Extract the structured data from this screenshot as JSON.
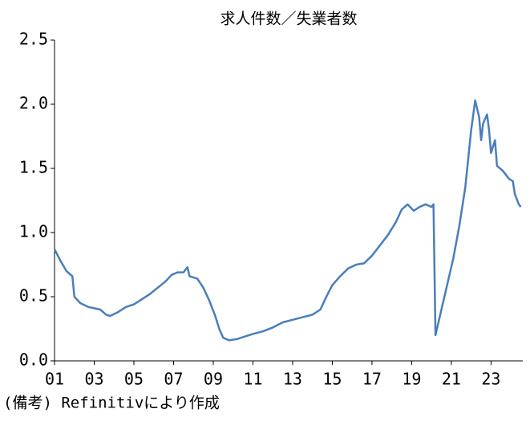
{
  "chart_data": {
    "type": "line",
    "title": "求人件数／失業者数",
    "note": "(備考) Refinitivにより作成",
    "xlim": [
      1,
      24.6
    ],
    "xticks": [
      {
        "value": 1,
        "label": "01"
      },
      {
        "value": 3,
        "label": "03"
      },
      {
        "value": 5,
        "label": "05"
      },
      {
        "value": 7,
        "label": "07"
      },
      {
        "value": 9,
        "label": "09"
      },
      11,
      13,
      15,
      17,
      19,
      21,
      23
    ],
    "ylim": [
      0,
      2.5
    ],
    "yticks": [
      {
        "value": 0,
        "label": "0.0"
      },
      0.5,
      {
        "value": 1,
        "label": "1.0"
      },
      1.5,
      {
        "value": 2,
        "label": "2.0"
      },
      2.5
    ],
    "grid": false,
    "series": [
      {
        "color": "#4a7ebb",
        "x": [
          1.0,
          1.3,
          1.6,
          1.9,
          2.0,
          2.3,
          2.7,
          3.0,
          3.3,
          3.6,
          3.8,
          4.2,
          4.6,
          5.0,
          5.4,
          5.8,
          6.2,
          6.6,
          6.9,
          7.2,
          7.5,
          7.7,
          7.8,
          8.2,
          8.5,
          8.8,
          9.1,
          9.3,
          9.5,
          9.8,
          10.2,
          10.6,
          11.0,
          11.5,
          12.0,
          12.5,
          13.0,
          13.5,
          14.0,
          14.4,
          14.7,
          15.0,
          15.4,
          15.8,
          16.2,
          16.6,
          17.0,
          17.4,
          17.8,
          18.2,
          18.5,
          18.8,
          19.1,
          19.4,
          19.7,
          20.0,
          20.1,
          20.2,
          20.5,
          20.8,
          21.1,
          21.4,
          21.7,
          21.9,
          22.0,
          22.2,
          22.4,
          22.5,
          22.6,
          22.8,
          22.9,
          23.0,
          23.2,
          23.3,
          23.6,
          23.9,
          24.1,
          24.2,
          24.4,
          24.5
        ],
        "values": [
          0.87,
          0.78,
          0.7,
          0.66,
          0.5,
          0.45,
          0.42,
          0.41,
          0.4,
          0.36,
          0.35,
          0.38,
          0.42,
          0.44,
          0.48,
          0.52,
          0.57,
          0.62,
          0.67,
          0.69,
          0.69,
          0.73,
          0.66,
          0.64,
          0.57,
          0.47,
          0.35,
          0.25,
          0.18,
          0.16,
          0.17,
          0.19,
          0.21,
          0.23,
          0.26,
          0.3,
          0.32,
          0.34,
          0.36,
          0.4,
          0.5,
          0.59,
          0.66,
          0.72,
          0.75,
          0.76,
          0.82,
          0.9,
          0.98,
          1.08,
          1.18,
          1.22,
          1.17,
          1.2,
          1.22,
          1.2,
          1.22,
          0.2,
          0.4,
          0.6,
          0.8,
          1.05,
          1.35,
          1.65,
          1.8,
          2.03,
          1.9,
          1.72,
          1.85,
          1.92,
          1.8,
          1.62,
          1.72,
          1.52,
          1.48,
          1.42,
          1.4,
          1.3,
          1.22,
          1.2
        ]
      }
    ]
  }
}
